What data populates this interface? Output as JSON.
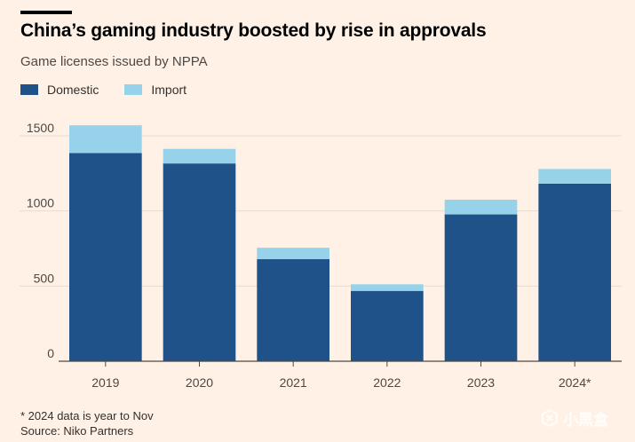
{
  "header": {
    "title": "China’s gaming industry boosted by rise in approvals",
    "subtitle": "Game licenses issued by NPPA"
  },
  "footer": {
    "footnote": "* 2024 data is year to Nov",
    "source": "Source: Niko Partners"
  },
  "watermark": {
    "text": "小黑盒",
    "icon": "heybox-logo-icon"
  },
  "colors": {
    "background": "#FFF1E5",
    "domestic": "#1F5289",
    "import": "#96D3EA",
    "gridline": "#E8DCD2",
    "axis": "#4D4845"
  },
  "chart_data": {
    "type": "bar",
    "stacked": true,
    "title": "China’s gaming industry boosted by rise in approvals",
    "subtitle": "Game licenses issued by NPPA",
    "xlabel": "",
    "ylabel": "",
    "categories": [
      "2019",
      "2020",
      "2021",
      "2022",
      "2023",
      "2024*"
    ],
    "series": [
      {
        "name": "Domestic",
        "values": [
          1385,
          1316,
          679,
          468,
          977,
          1182
        ]
      },
      {
        "name": "Import",
        "values": [
          185,
          97,
          76,
          44,
          98,
          97
        ]
      }
    ],
    "yticks": [
      0,
      500,
      1000,
      1500
    ],
    "ylim": [
      0,
      1600
    ],
    "grid": true,
    "legend": "top-left"
  }
}
